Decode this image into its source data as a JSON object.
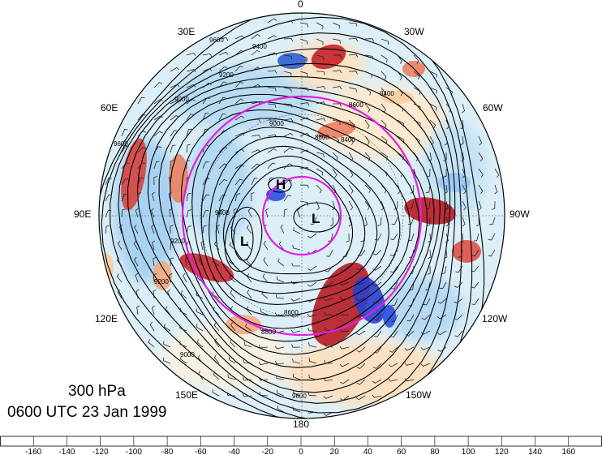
{
  "map": {
    "level": "300 hPa",
    "valid_time": "0600 UTC 23 Jan 1999",
    "longitude_labels": {
      "0": "0",
      "30w": "30W",
      "60w": "60W",
      "90w": "90W",
      "120w": "120W",
      "150w": "150W",
      "180": "180",
      "150e": "150E",
      "120e": "120E",
      "90e": "90E",
      "60e": "60E",
      "30e": "30E"
    },
    "contour_labels": [
      "9600",
      "9400",
      "9200",
      "9000",
      "8800",
      "8600",
      "8400",
      "9600",
      "9400",
      "9200",
      "9000",
      "8800",
      "8600",
      "8400",
      "9000",
      "9200",
      "9600"
    ],
    "pressure_centers": [
      "H",
      "L",
      "L"
    ],
    "colorbar": {
      "ticks": [
        "-160",
        "-140",
        "-120",
        "-100",
        "-80",
        "-60",
        "-40",
        "-20",
        "0",
        "20",
        "40",
        "60",
        "80",
        "100",
        "120",
        "140",
        "160"
      ],
      "colors": [
        "#1414c8",
        "#2a4fe0",
        "#3f73ea",
        "#5b93f0",
        "#79aef2",
        "#98c6f5",
        "#b6dbf8",
        "#d3edfb",
        "#eef9fe",
        "#fffbe5",
        "#fde7c4",
        "#f9cca0",
        "#f3aa7e",
        "#ea815f",
        "#dc5145",
        "#cc2630",
        "#a6101f",
        "#7a0517"
      ]
    },
    "colors": {
      "circle": "#e020e0",
      "contour": "#000000"
    }
  }
}
